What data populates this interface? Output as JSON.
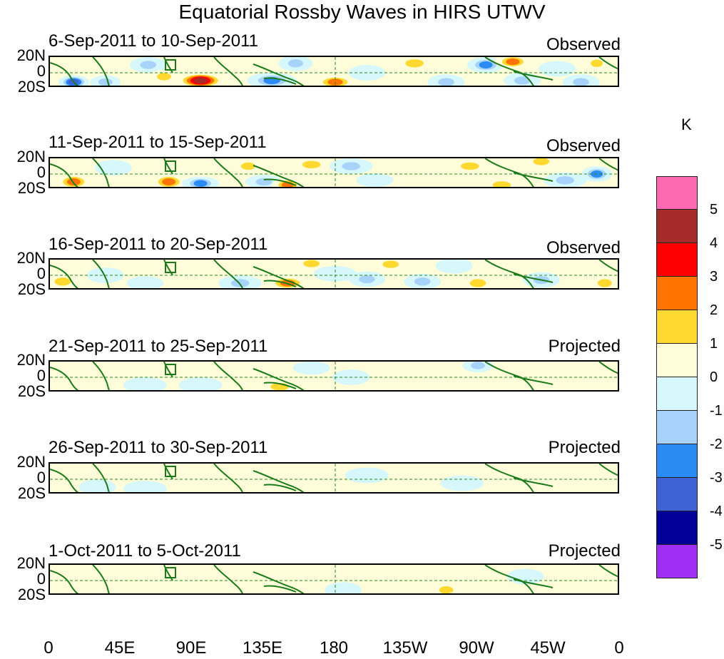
{
  "title": "Equatorial Rossby Waves in HIRS UTWV",
  "panels": [
    {
      "date": "6-Sep-2011 to 10-Sep-2011",
      "kind": "Observed"
    },
    {
      "date": "11-Sep-2011 to 15-Sep-2011",
      "kind": "Observed"
    },
    {
      "date": "16-Sep-2011 to 20-Sep-2011",
      "kind": "Observed"
    },
    {
      "date": "21-Sep-2011 to 25-Sep-2011",
      "kind": "Projected"
    },
    {
      "date": "26-Sep-2011 to 30-Sep-2011",
      "kind": "Projected"
    },
    {
      "date": "1-Oct-2011 to 5-Oct-2011",
      "kind": "Projected"
    }
  ],
  "lat_labels": [
    "20N",
    "0",
    "20S"
  ],
  "lon_labels": [
    "0",
    "45E",
    "90E",
    "135E",
    "180",
    "135W",
    "90W",
    "45W",
    "0"
  ],
  "colorbar": {
    "unit": "K",
    "ticks": [
      "5",
      "4",
      "3",
      "2",
      "1",
      "0",
      "-1",
      "-2",
      "-3",
      "-4",
      "-5"
    ],
    "colors": [
      "#ff69b4",
      "#a52a2a",
      "#ff0000",
      "#ff7400",
      "#ffd92f",
      "#fffcd9",
      "#d6f7fb",
      "#a7d3fb",
      "#2a8bf5",
      "#3f63d6",
      "#000099",
      "#9f2ff5"
    ]
  },
  "contour_colors": {
    "land": "#1a7a1a",
    "dashed_grid": "#228b22"
  },
  "blobs": [
    [
      [
        1,
        15,
        3,
        -12,
        8,
        5,
        -4
      ],
      [
        1,
        35,
        5,
        -12,
        8,
        5,
        -2
      ],
      [
        1,
        62,
        10,
        10,
        10,
        6,
        -2
      ],
      [
        1,
        72,
        6,
        -5,
        8,
        5,
        2
      ],
      [
        1,
        95,
        3,
        -10,
        14,
        6,
        5
      ],
      [
        1,
        140,
        5,
        -10,
        14,
        6,
        -3
      ],
      [
        1,
        118,
        8,
        8,
        10,
        6,
        1
      ],
      [
        1,
        155,
        3,
        12,
        9,
        6,
        -2
      ],
      [
        1,
        180,
        8,
        -12,
        12,
        5,
        3
      ],
      [
        1,
        200,
        5,
        0,
        10,
        6,
        -1
      ],
      [
        1,
        230,
        6,
        12,
        12,
        6,
        2
      ],
      [
        1,
        250,
        3,
        -12,
        10,
        6,
        -2
      ],
      [
        1,
        275,
        2,
        10,
        10,
        6,
        -3
      ],
      [
        1,
        298,
        -2,
        -10,
        10,
        6,
        -2
      ],
      [
        1,
        292,
        15,
        14,
        10,
        5,
        3
      ],
      [
        1,
        320,
        -5,
        5,
        10,
        6,
        -1
      ],
      [
        1,
        335,
        -3,
        -12,
        10,
        6,
        -2
      ],
      [
        1,
        345,
        10,
        12,
        6,
        5,
        2
      ]
    ],
    [
      [
        2,
        15,
        -3,
        -10,
        10,
        6,
        3
      ],
      [
        2,
        40,
        4,
        8,
        10,
        6,
        -1
      ],
      [
        2,
        75,
        8,
        -10,
        10,
        6,
        3
      ],
      [
        2,
        95,
        5,
        -12,
        10,
        5,
        -3
      ],
      [
        2,
        110,
        6,
        14,
        8,
        5,
        1
      ],
      [
        2,
        135,
        7,
        -10,
        10,
        5,
        -2
      ],
      [
        2,
        125,
        6,
        10,
        8,
        5,
        2
      ],
      [
        2,
        150,
        4,
        -14,
        8,
        5,
        3
      ],
      [
        2,
        165,
        5,
        12,
        12,
        5,
        2
      ],
      [
        2,
        190,
        6,
        10,
        12,
        6,
        -2
      ],
      [
        2,
        205,
        8,
        -8,
        10,
        5,
        -1
      ],
      [
        2,
        265,
        4,
        10,
        12,
        5,
        2
      ],
      [
        2,
        285,
        5,
        -14,
        12,
        5,
        2
      ],
      [
        2,
        310,
        8,
        16,
        10,
        5,
        2
      ],
      [
        2,
        325,
        5,
        -8,
        12,
        6,
        -2
      ],
      [
        2,
        345,
        5,
        0,
        8,
        6,
        -3
      ]
    ],
    [
      [
        3,
        8,
        -5,
        -8,
        10,
        6,
        2
      ],
      [
        3,
        35,
        3,
        0,
        10,
        6,
        -1
      ],
      [
        3,
        60,
        4,
        -10,
        10,
        5,
        -1
      ],
      [
        3,
        120,
        6,
        -10,
        12,
        6,
        -2
      ],
      [
        3,
        150,
        4,
        -10,
        12,
        5,
        3
      ],
      [
        3,
        165,
        4,
        15,
        10,
        5,
        2
      ],
      [
        3,
        180,
        6,
        2,
        12,
        6,
        -1
      ],
      [
        3,
        200,
        6,
        -5,
        10,
        6,
        -2
      ],
      [
        3,
        215,
        8,
        14,
        10,
        5,
        2
      ],
      [
        3,
        235,
        5,
        -8,
        10,
        6,
        -2
      ],
      [
        3,
        255,
        6,
        12,
        10,
        6,
        -1
      ],
      [
        3,
        270,
        6,
        -10,
        10,
        6,
        2
      ],
      [
        3,
        290,
        6,
        10,
        10,
        5,
        1
      ],
      [
        3,
        310,
        6,
        -6,
        10,
        6,
        -2
      ],
      [
        3,
        335,
        5,
        10,
        10,
        5,
        1
      ],
      [
        3,
        350,
        4,
        -10,
        8,
        6,
        2
      ]
    ],
    [
      [
        4,
        20,
        2,
        -10,
        10,
        6,
        1
      ],
      [
        4,
        60,
        3,
        -10,
        12,
        6,
        -1
      ],
      [
        4,
        95,
        4,
        -10,
        12,
        6,
        -1
      ],
      [
        4,
        145,
        4,
        -12,
        12,
        5,
        2
      ],
      [
        4,
        165,
        4,
        12,
        10,
        5,
        -1
      ],
      [
        4,
        190,
        5,
        0,
        10,
        6,
        -1
      ],
      [
        4,
        220,
        6,
        10,
        10,
        5,
        1
      ],
      [
        4,
        245,
        5,
        -10,
        10,
        6,
        1
      ],
      [
        4,
        270,
        4,
        15,
        8,
        5,
        -2
      ],
      [
        4,
        290,
        6,
        -10,
        8,
        6,
        1
      ],
      [
        4,
        325,
        5,
        -8,
        10,
        6,
        1
      ],
      [
        4,
        345,
        6,
        0,
        8,
        6,
        1
      ]
    ],
    [
      [
        5,
        30,
        2,
        -10,
        10,
        6,
        -1
      ],
      [
        5,
        60,
        5,
        -12,
        12,
        6,
        -1
      ],
      [
        5,
        90,
        6,
        0,
        12,
        6,
        1
      ],
      [
        5,
        140,
        6,
        -10,
        12,
        6,
        1
      ],
      [
        5,
        200,
        8,
        5,
        12,
        6,
        -1
      ],
      [
        5,
        260,
        6,
        -5,
        12,
        6,
        -1
      ],
      [
        5,
        310,
        6,
        0,
        12,
        6,
        1
      ]
    ],
    [
      [
        6,
        40,
        4,
        0,
        12,
        6,
        1
      ],
      [
        6,
        100,
        5,
        15,
        10,
        5,
        1
      ],
      [
        6,
        140,
        4,
        -10,
        12,
        6,
        1
      ],
      [
        6,
        185,
        8,
        -12,
        10,
        6,
        -1
      ],
      [
        6,
        235,
        6,
        -10,
        12,
        6,
        1
      ],
      [
        6,
        250,
        6,
        -12,
        8,
        5,
        2
      ],
      [
        6,
        300,
        5,
        5,
        10,
        6,
        -1
      ],
      [
        6,
        340,
        6,
        -15,
        10,
        6,
        1
      ]
    ]
  ]
}
